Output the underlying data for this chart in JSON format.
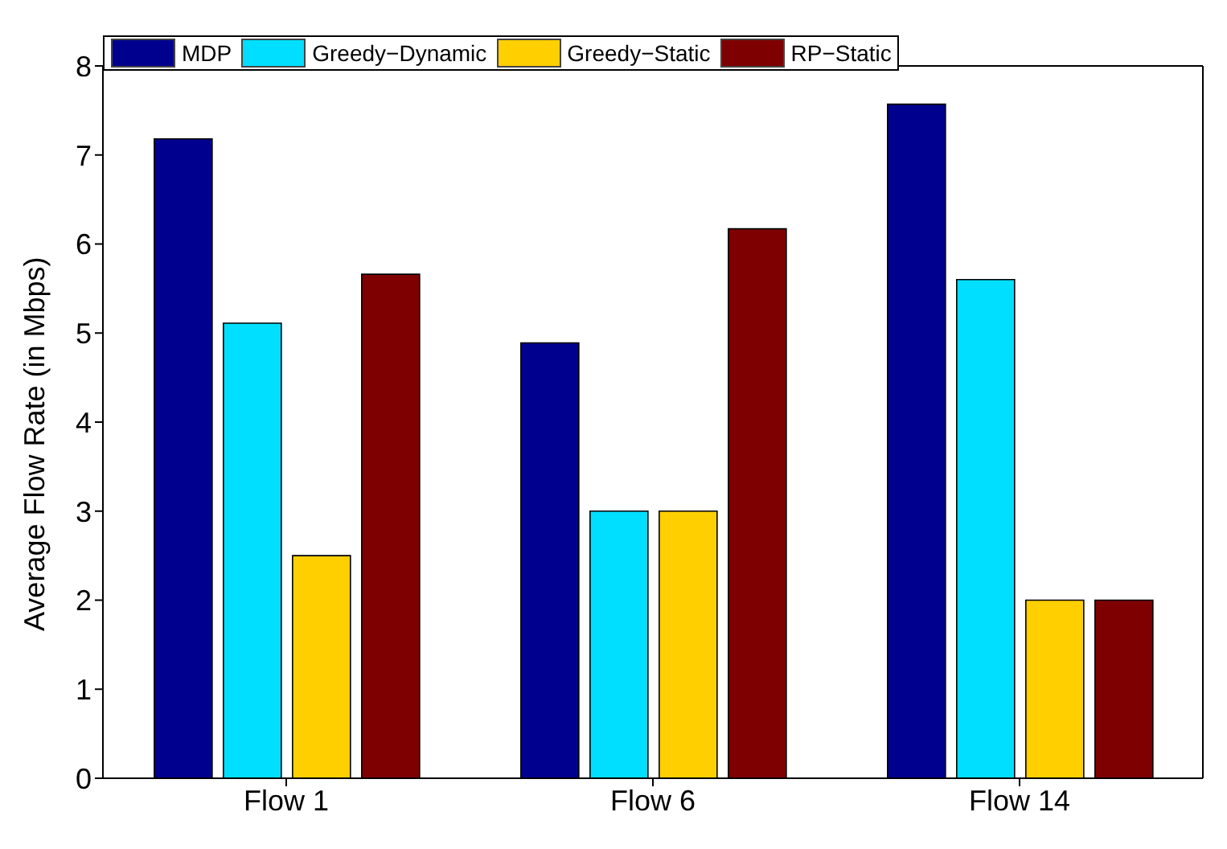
{
  "chart_data": {
    "type": "bar",
    "ylabel": "Average Flow Rate (in Mbps)",
    "categories": [
      "Flow 1",
      "Flow 6",
      "Flow 14"
    ],
    "series": [
      {
        "name": "MDP",
        "color": "#00008f",
        "values": [
          7.18,
          4.89,
          7.57
        ]
      },
      {
        "name": "Greedy−Dynamic",
        "color": "#00dfff",
        "values": [
          5.11,
          3.0,
          5.6
        ]
      },
      {
        "name": "Greedy−Static",
        "color": "#ffcf00",
        "values": [
          2.5,
          3.0,
          2.0
        ]
      },
      {
        "name": "RP−Static",
        "color": "#7f0000",
        "values": [
          5.66,
          6.17,
          2.0
        ]
      }
    ],
    "ylim": [
      0,
      8
    ],
    "yticks": [
      0,
      1,
      2,
      3,
      4,
      5,
      6,
      7,
      8
    ],
    "grid": false,
    "legend": "top left"
  }
}
